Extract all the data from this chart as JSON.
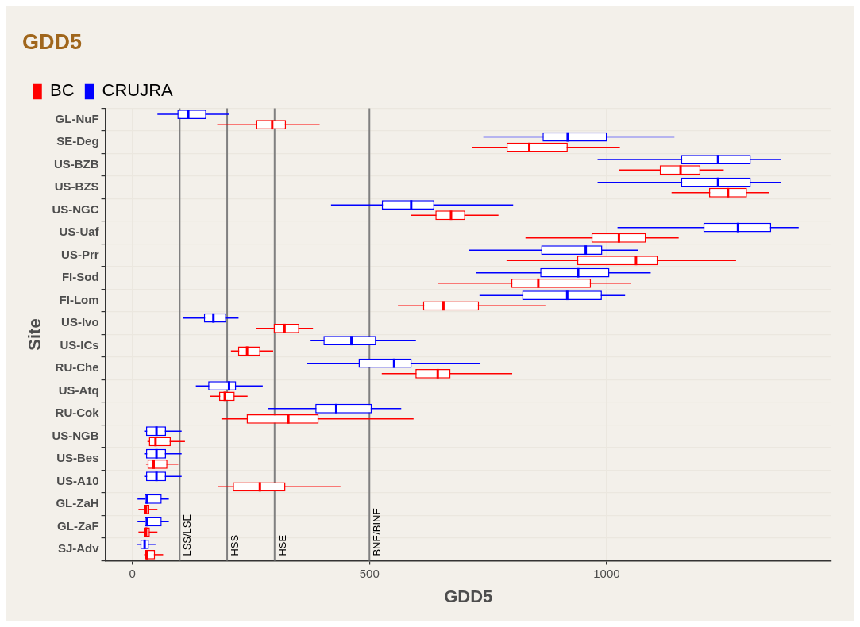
{
  "chart_data": {
    "type": "box",
    "orientation": "horizontal",
    "title": "GDD5",
    "xlabel": "GDD5",
    "ylabel": "Site",
    "legend": "top",
    "grid": true,
    "categories": [
      "GL-NuF",
      "SE-Deg",
      "US-BZB",
      "US-BZS",
      "US-NGC",
      "US-Uaf",
      "US-Prr",
      "FI-Sod",
      "FI-Lom",
      "US-Ivo",
      "US-ICs",
      "RU-Che",
      "US-Atq",
      "RU-Cok",
      "US-NGB",
      "US-Bes",
      "US-A10",
      "GL-ZaH",
      "GL-ZaF",
      "SJ-Adv"
    ],
    "xlim": [
      -57,
      1474
    ],
    "xticks": [
      0,
      500,
      1000
    ],
    "series": [
      {
        "name": "BC",
        "color": "#ff0000",
        "boxes": [
          {
            "low": 179,
            "q1": 261,
            "median": 295,
            "q3": 324,
            "high": 395
          },
          {
            "low": 717,
            "q1": 789,
            "median": 837,
            "q3": 918,
            "high": 1028
          },
          {
            "low": 1026,
            "q1": 1112,
            "median": 1156,
            "q3": 1198,
            "high": 1247
          },
          {
            "low": 1137,
            "q1": 1216,
            "median": 1256,
            "q3": 1296,
            "high": 1343
          },
          {
            "low": 587,
            "q1": 639,
            "median": 672,
            "q3": 702,
            "high": 772
          },
          {
            "low": 829,
            "q1": 968,
            "median": 1026,
            "q3": 1083,
            "high": 1152
          },
          {
            "low": 789,
            "q1": 938,
            "median": 1062,
            "q3": 1108,
            "high": 1273
          },
          {
            "low": 645,
            "q1": 799,
            "median": 856,
            "q3": 967,
            "high": 1051
          },
          {
            "low": 560,
            "q1": 613,
            "median": 656,
            "q3": 731,
            "high": 871
          },
          {
            "low": 261,
            "q1": 298,
            "median": 321,
            "q3": 352,
            "high": 381
          },
          {
            "low": 208,
            "q1": 223,
            "median": 242,
            "q3": 270,
            "high": 297
          },
          {
            "low": 526,
            "q1": 597,
            "median": 644,
            "q3": 671,
            "high": 801
          },
          {
            "low": 164,
            "q1": 183,
            "median": 195,
            "q3": 216,
            "high": 243
          },
          {
            "low": 188,
            "q1": 241,
            "median": 329,
            "q3": 393,
            "high": 593
          },
          {
            "low": 32,
            "q1": 35,
            "median": 49,
            "q3": 81,
            "high": 111
          },
          {
            "low": 29,
            "q1": 32,
            "median": 45,
            "q3": 74,
            "high": 97
          },
          {
            "low": 180,
            "q1": 212,
            "median": 269,
            "q3": 323,
            "high": 439
          },
          {
            "low": 13,
            "q1": 24,
            "median": 29,
            "q3": 36,
            "high": 53
          },
          {
            "low": 13,
            "q1": 24,
            "median": 29,
            "q3": 37,
            "high": 53
          },
          {
            "low": 25,
            "q1": 27,
            "median": 31,
            "q3": 48,
            "high": 65
          }
        ]
      },
      {
        "name": "CRUJRA",
        "color": "#0000ff",
        "boxes": [
          {
            "low": 53,
            "q1": 95,
            "median": 118,
            "q3": 156,
            "high": 204
          },
          {
            "low": 740,
            "q1": 865,
            "median": 918,
            "q3": 1001,
            "high": 1143
          },
          {
            "low": 981,
            "q1": 1157,
            "median": 1235,
            "q3": 1304,
            "high": 1368
          },
          {
            "low": 981,
            "q1": 1157,
            "median": 1235,
            "q3": 1304,
            "high": 1368
          },
          {
            "low": 419,
            "q1": 526,
            "median": 588,
            "q3": 637,
            "high": 803
          },
          {
            "low": 1023,
            "q1": 1204,
            "median": 1277,
            "q3": 1347,
            "high": 1405
          },
          {
            "low": 710,
            "q1": 862,
            "median": 956,
            "q3": 991,
            "high": 1066
          },
          {
            "low": 724,
            "q1": 860,
            "median": 940,
            "q3": 1006,
            "high": 1093
          },
          {
            "low": 732,
            "q1": 822,
            "median": 917,
            "q3": 990,
            "high": 1039
          },
          {
            "low": 107,
            "q1": 151,
            "median": 171,
            "q3": 198,
            "high": 224
          },
          {
            "low": 376,
            "q1": 403,
            "median": 462,
            "q3": 514,
            "high": 598
          },
          {
            "low": 369,
            "q1": 477,
            "median": 552,
            "q3": 589,
            "high": 734
          },
          {
            "low": 134,
            "q1": 160,
            "median": 204,
            "q3": 219,
            "high": 275
          },
          {
            "low": 287,
            "q1": 386,
            "median": 430,
            "q3": 505,
            "high": 567
          },
          {
            "low": 25,
            "q1": 29,
            "median": 51,
            "q3": 71,
            "high": 104
          },
          {
            "low": 25,
            "q1": 29,
            "median": 51,
            "q3": 71,
            "high": 104
          },
          {
            "low": 25,
            "q1": 29,
            "median": 51,
            "q3": 71,
            "high": 104
          },
          {
            "low": 11,
            "q1": 26,
            "median": 31,
            "q3": 62,
            "high": 77
          },
          {
            "low": 11,
            "q1": 26,
            "median": 31,
            "q3": 62,
            "high": 77
          },
          {
            "low": 9,
            "q1": 17,
            "median": 26,
            "q3": 35,
            "high": 49
          }
        ]
      }
    ],
    "ref_lines": [
      {
        "axis": "x",
        "value": 100,
        "label": "LSS/LSE",
        "color": "#808080"
      },
      {
        "axis": "x",
        "value": 200,
        "label": "HSS",
        "color": "#808080"
      },
      {
        "axis": "x",
        "value": 300,
        "label": "HSE",
        "color": "#808080"
      },
      {
        "axis": "x",
        "value": 500,
        "label": "BNE/BINE",
        "color": "#808080"
      }
    ]
  }
}
